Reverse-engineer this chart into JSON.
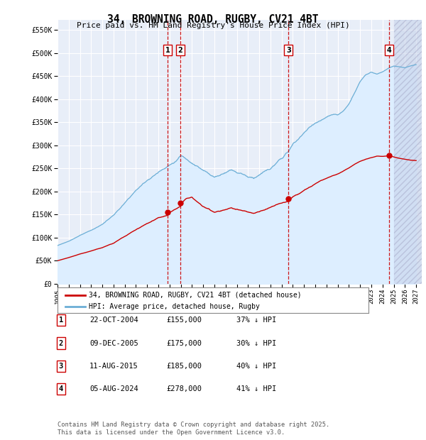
{
  "title": "34, BROWNING ROAD, RUGBY, CV21 4BT",
  "subtitle": "Price paid vs. HM Land Registry's House Price Index (HPI)",
  "yticks": [
    0,
    50000,
    100000,
    150000,
    200000,
    250000,
    300000,
    350000,
    400000,
    450000,
    500000,
    550000
  ],
  "ytick_labels": [
    "£0",
    "£50K",
    "£100K",
    "£150K",
    "£200K",
    "£250K",
    "£300K",
    "£350K",
    "£400K",
    "£450K",
    "£500K",
    "£550K"
  ],
  "xlim_start": 1995.0,
  "xlim_end": 2027.5,
  "ylim_min": 0,
  "ylim_max": 572000,
  "sale_color": "#cc0000",
  "hpi_color": "#6baed6",
  "hpi_fill_color": "#ddeeff",
  "legend_sale_label": "34, BROWNING ROAD, RUGBY, CV21 4BT (detached house)",
  "legend_hpi_label": "HPI: Average price, detached house, Rugby",
  "transactions": [
    {
      "num": 1,
      "date": "22-OCT-2004",
      "date_x": 2004.81,
      "price": 155000,
      "pct": "37% ↓ HPI"
    },
    {
      "num": 2,
      "date": "09-DEC-2005",
      "date_x": 2005.94,
      "price": 175000,
      "pct": "30% ↓ HPI"
    },
    {
      "num": 3,
      "date": "11-AUG-2015",
      "date_x": 2015.61,
      "price": 185000,
      "pct": "40% ↓ HPI"
    },
    {
      "num": 4,
      "date": "05-AUG-2024",
      "date_x": 2024.6,
      "price": 278000,
      "pct": "41% ↓ HPI"
    }
  ],
  "footer": "Contains HM Land Registry data © Crown copyright and database right 2025.\nThis data is licensed under the Open Government Licence v3.0.",
  "background_color": "#e8eef8",
  "xtick_years": [
    1995,
    1996,
    1997,
    1998,
    1999,
    2000,
    2001,
    2002,
    2003,
    2004,
    2005,
    2006,
    2007,
    2008,
    2009,
    2010,
    2011,
    2012,
    2013,
    2014,
    2015,
    2016,
    2017,
    2018,
    2019,
    2020,
    2021,
    2022,
    2023,
    2024,
    2025,
    2026,
    2027
  ]
}
